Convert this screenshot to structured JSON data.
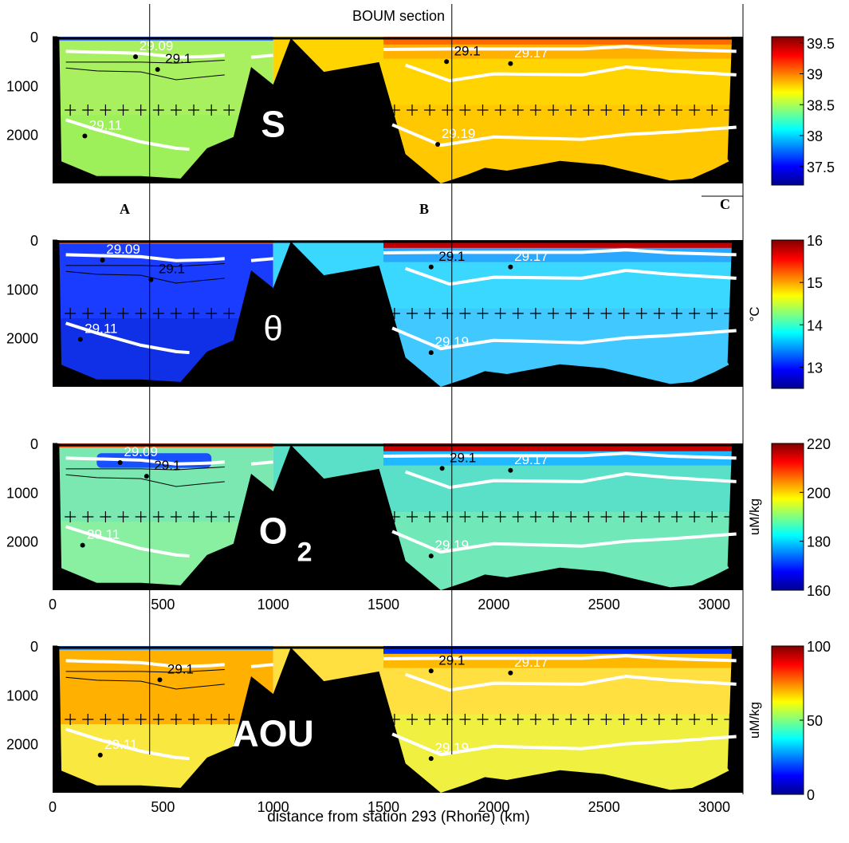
{
  "figure": {
    "title": "BOUM section",
    "xlabel": "distance from station 293 (Rhone)  (km)",
    "x_ticks": [
      "0",
      "500",
      "1000",
      "1500",
      "2000",
      "2500",
      "3000"
    ],
    "y_ticks": [
      "0",
      "1000",
      "2000"
    ],
    "station_labels": [
      "A",
      "B",
      "C"
    ],
    "marker_depth_m": 1500,
    "marker_x_km": [
      80,
      160,
      240,
      320,
      400,
      480,
      560,
      640,
      720,
      800,
      1550,
      1630,
      1710,
      1790,
      1870,
      1950,
      2030,
      2110,
      2190,
      2270,
      2350,
      2430,
      2510,
      2590,
      2670,
      2750,
      2830,
      2910,
      2990,
      3070
    ],
    "vertical_line_x_km": [
      440,
      1810
    ]
  },
  "chart_data": [
    {
      "type": "heatmap",
      "variable_label": "S",
      "colorbar_label": "",
      "colorbar_ticks": [
        "39.5",
        "39",
        "38.5",
        "38",
        "37.5"
      ],
      "colorbar_values": [
        39.5,
        39,
        38.5,
        38,
        37.5
      ],
      "clim": [
        37.2,
        39.6
      ],
      "isopycnal_labels": [
        {
          "text": "29.09",
          "x_km": 470,
          "depth_m": 280,
          "color": "white"
        },
        {
          "text": "29.1",
          "x_km": 570,
          "depth_m": 540,
          "color": "black"
        },
        {
          "text": "29.11",
          "x_km": 240,
          "depth_m": 1900,
          "color": "white"
        },
        {
          "text": "29.1",
          "x_km": 1880,
          "depth_m": 380,
          "color": "black"
        },
        {
          "text": "29.17",
          "x_km": 2170,
          "depth_m": 420,
          "color": "white"
        },
        {
          "text": "29.19",
          "x_km": 1840,
          "depth_m": 2070,
          "color": "white"
        }
      ],
      "xlim": [
        0,
        3130
      ],
      "ylim": [
        0,
        3000
      ]
    },
    {
      "type": "heatmap",
      "variable_label": "θ",
      "colorbar_label": "°C",
      "colorbar_ticks": [
        "16",
        "15",
        "14",
        "13"
      ],
      "colorbar_values": [
        16,
        15,
        14,
        13
      ],
      "clim": [
        12.5,
        16
      ],
      "isopycnal_labels": [
        {
          "text": "29.09",
          "x_km": 320,
          "depth_m": 280,
          "color": "white"
        },
        {
          "text": "29.1",
          "x_km": 540,
          "depth_m": 680,
          "color": "black"
        },
        {
          "text": "29.11",
          "x_km": 220,
          "depth_m": 1900,
          "color": "white"
        },
        {
          "text": "29.1",
          "x_km": 1810,
          "depth_m": 420,
          "color": "black"
        },
        {
          "text": "29.17",
          "x_km": 2170,
          "depth_m": 420,
          "color": "white"
        },
        {
          "text": "29.19",
          "x_km": 1810,
          "depth_m": 2170,
          "color": "white"
        }
      ],
      "xlim": [
        0,
        3130
      ],
      "ylim": [
        0,
        3000
      ]
    },
    {
      "type": "heatmap",
      "variable_label": "O",
      "variable_sub": "2",
      "colorbar_label": "uM/kg",
      "colorbar_ticks": [
        "220",
        "200",
        "180",
        "160"
      ],
      "colorbar_values": [
        220,
        200,
        180,
        160
      ],
      "clim": [
        160,
        220
      ],
      "isopycnal_labels": [
        {
          "text": "29.09",
          "x_km": 400,
          "depth_m": 260,
          "color": "white"
        },
        {
          "text": "29.1",
          "x_km": 520,
          "depth_m": 540,
          "color": "black"
        },
        {
          "text": "29.11",
          "x_km": 230,
          "depth_m": 1950,
          "color": "white"
        },
        {
          "text": "29.1",
          "x_km": 1860,
          "depth_m": 380,
          "color": "black"
        },
        {
          "text": "29.17",
          "x_km": 2170,
          "depth_m": 420,
          "color": "white"
        },
        {
          "text": "29.19",
          "x_km": 1810,
          "depth_m": 2170,
          "color": "white"
        }
      ],
      "xlim": [
        0,
        3130
      ],
      "ylim": [
        0,
        3000
      ]
    },
    {
      "type": "heatmap",
      "variable_label": "AOU",
      "colorbar_label": "uM/kg",
      "colorbar_ticks": [
        "100",
        "50",
        "0"
      ],
      "colorbar_values": [
        100,
        50,
        0
      ],
      "clim": [
        0,
        100
      ],
      "isopycnal_labels": [
        {
          "text": "29.1",
          "x_km": 580,
          "depth_m": 560,
          "color": "black"
        },
        {
          "text": "29.11",
          "x_km": 310,
          "depth_m": 2100,
          "color": "white"
        },
        {
          "text": "29.1",
          "x_km": 1810,
          "depth_m": 380,
          "color": "black"
        },
        {
          "text": "29.17",
          "x_km": 2170,
          "depth_m": 420,
          "color": "white"
        },
        {
          "text": "29.19",
          "x_km": 1810,
          "depth_m": 2170,
          "color": "white"
        }
      ],
      "xlim": [
        0,
        3130
      ],
      "ylim": [
        0,
        3000
      ]
    }
  ]
}
